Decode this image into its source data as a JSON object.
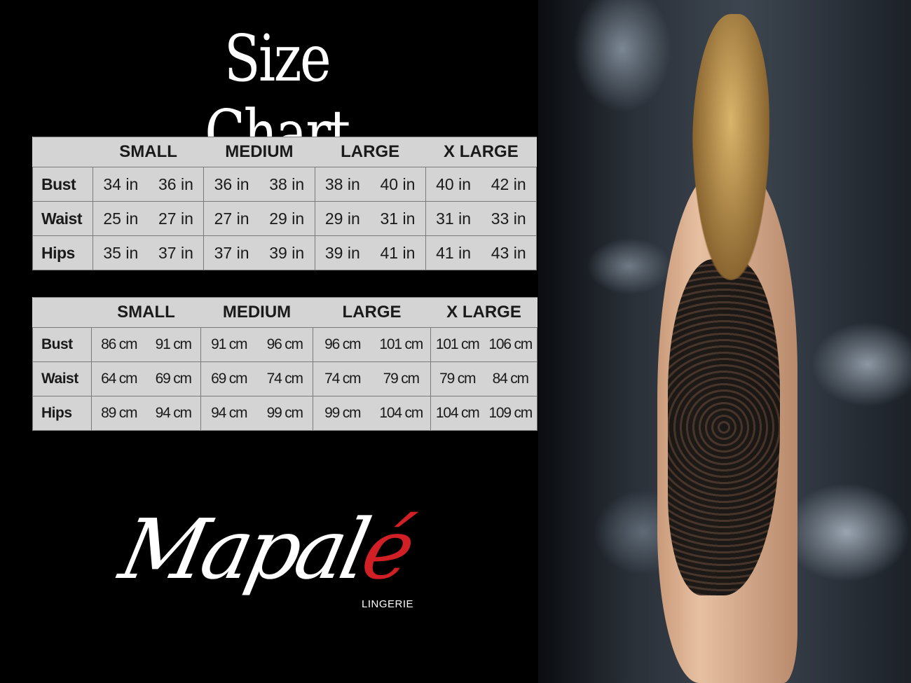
{
  "title": "Size Chart",
  "sizes": [
    "SMALL",
    "MEDIUM",
    "LARGE",
    "X LARGE"
  ],
  "inches_table": {
    "rows": [
      {
        "label": "Bust",
        "values": [
          "34 in",
          "36 in",
          "36 in",
          "38 in",
          "38 in",
          "40 in",
          "40 in",
          "42 in"
        ]
      },
      {
        "label": "Waist",
        "values": [
          "25 in",
          "27 in",
          "27 in",
          "29 in",
          "29 in",
          "31 in",
          "31 in",
          "33 in"
        ]
      },
      {
        "label": "Hips",
        "values": [
          "35 in",
          "37 in",
          "37 in",
          "39 in",
          "39 in",
          "41 in",
          "41 in",
          "43 in"
        ]
      }
    ]
  },
  "cm_table": {
    "rows": [
      {
        "label": "Bust",
        "values": [
          "86 cm",
          "91 cm",
          "91 cm",
          "96 cm",
          "96 cm",
          "101 cm",
          "101 cm",
          "106 cm"
        ]
      },
      {
        "label": "Waist",
        "values": [
          "64 cm",
          "69 cm",
          "69 cm",
          "74 cm",
          "74 cm",
          "79  cm",
          "79 cm",
          "84 cm"
        ]
      },
      {
        "label": "Hips",
        "values": [
          "89 cm",
          "94 cm",
          "94 cm",
          "99 cm",
          "99 cm",
          "104 cm",
          "104 cm",
          "109 cm"
        ]
      }
    ]
  },
  "logo": {
    "text_main": "Mapal",
    "text_accent": "é",
    "subtitle": "LINGERIE",
    "accent_color": "#d11f26"
  },
  "colors": {
    "background": "#000000",
    "table_bg": "#d4d4d4",
    "table_border": "#7a7a7a"
  }
}
